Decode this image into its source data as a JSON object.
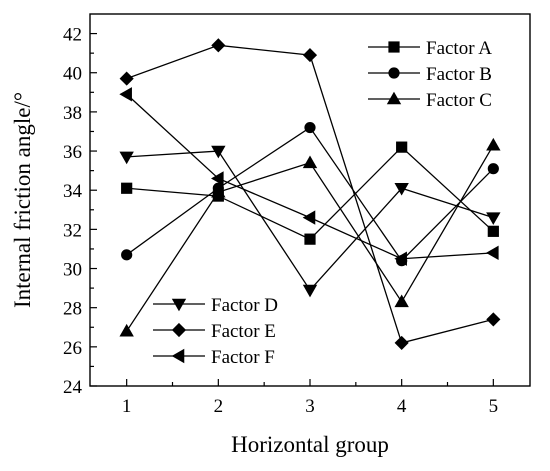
{
  "chart_data": {
    "type": "line",
    "xlabel": "Horizontal group",
    "ylabel": "Internal friction angle/°",
    "x": [
      1,
      2,
      3,
      4,
      5
    ],
    "xlim": [
      0.6,
      5.4
    ],
    "ylim": [
      24,
      43
    ],
    "xticks": [
      "1",
      "2",
      "3",
      "4",
      "5"
    ],
    "yticks": [
      "24",
      "26",
      "28",
      "30",
      "32",
      "34",
      "36",
      "38",
      "40",
      "42"
    ],
    "grid": false,
    "series": [
      {
        "name": "Factor A",
        "marker": "square",
        "values": [
          34.1,
          33.7,
          31.5,
          36.2,
          31.9
        ]
      },
      {
        "name": "Factor B",
        "marker": "circle",
        "values": [
          30.7,
          34.1,
          37.2,
          30.4,
          35.1
        ]
      },
      {
        "name": "Factor C",
        "marker": "triangle-up",
        "values": [
          26.8,
          33.9,
          35.4,
          28.3,
          36.3
        ]
      },
      {
        "name": "Factor D",
        "marker": "triangle-down",
        "values": [
          35.7,
          36.0,
          28.9,
          34.1,
          32.6
        ]
      },
      {
        "name": "Factor E",
        "marker": "diamond",
        "values": [
          39.7,
          41.4,
          40.9,
          26.2,
          27.4
        ]
      },
      {
        "name": "Factor F",
        "marker": "triangle-left",
        "values": [
          38.9,
          34.6,
          32.6,
          30.5,
          30.8
        ]
      }
    ],
    "legends": [
      {
        "placement": "top-right",
        "series": [
          "Factor A",
          "Factor B",
          "Factor C"
        ]
      },
      {
        "placement": "bottom-left",
        "series": [
          "Factor D",
          "Factor E",
          "Factor F"
        ]
      }
    ]
  }
}
